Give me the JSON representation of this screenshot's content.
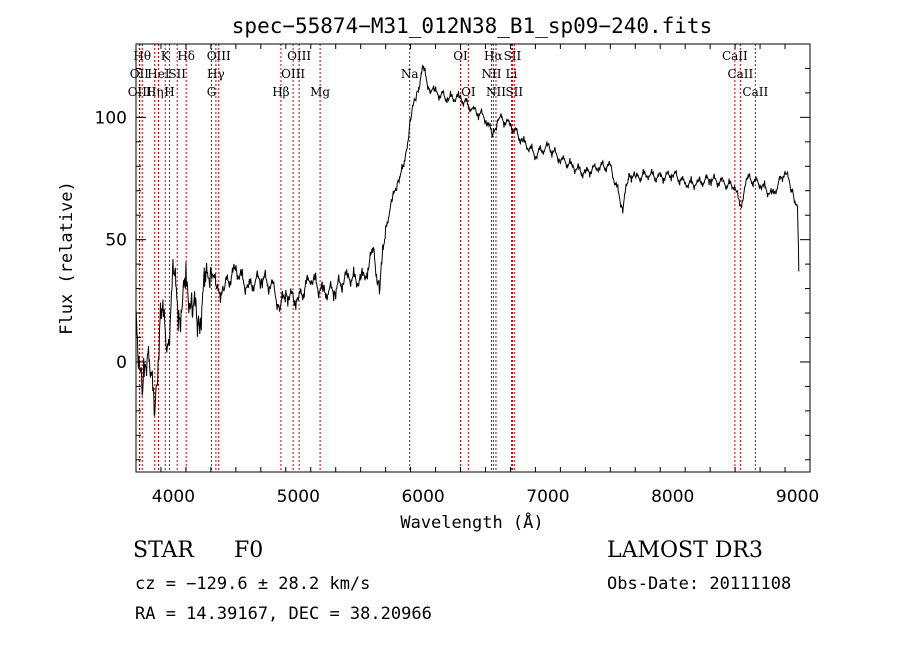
{
  "chart_data": {
    "type": "line",
    "title": "spec−55874−M31_012N38_B1_sp09−240.fits",
    "xlabel": "Wavelength (Å)",
    "ylabel": "Flux (relative)",
    "xlim": [
      3700,
      9100
    ],
    "ylim": [
      -45,
      130
    ],
    "xticks": [
      4000,
      5000,
      6000,
      7000,
      8000,
      9000
    ],
    "yticks": [
      0,
      50,
      100
    ],
    "series": [
      {
        "name": "spectrum",
        "x": [
          3700,
          3750,
          3800,
          3850,
          3900,
          3950,
          4000,
          4050,
          4100,
          4150,
          4200,
          4250,
          4300,
          4350,
          4400,
          4500,
          4600,
          4700,
          4800,
          4850,
          4900,
          5000,
          5100,
          5200,
          5300,
          5400,
          5500,
          5550,
          5600,
          5650,
          5700,
          5750,
          5800,
          5850,
          5900,
          5950,
          6000,
          6050,
          6100,
          6200,
          6300,
          6400,
          6500,
          6560,
          6600,
          6700,
          6800,
          6900,
          7000,
          7100,
          7200,
          7300,
          7400,
          7500,
          7600,
          7650,
          7700,
          7800,
          7900,
          8000,
          8100,
          8200,
          8300,
          8400,
          8500,
          8540,
          8600,
          8700,
          8800,
          8900,
          8960,
          9000,
          9010
        ],
        "y": [
          20,
          -15,
          10,
          -25,
          25,
          5,
          35,
          20,
          30,
          25,
          15,
          30,
          40,
          28,
          30,
          38,
          30,
          35,
          30,
          22,
          28,
          25,
          35,
          28,
          30,
          35,
          33,
          38,
          45,
          30,
          55,
          65,
          75,
          80,
          100,
          110,
          120,
          112,
          110,
          108,
          108,
          103,
          100,
          92,
          100,
          97,
          90,
          85,
          88,
          83,
          80,
          77,
          80,
          80,
          63,
          77,
          75,
          77,
          75,
          77,
          73,
          73,
          75,
          73,
          72,
          63,
          75,
          73,
          68,
          78,
          70,
          63,
          37
        ]
      }
    ],
    "line_labels": [
      {
        "wavelength": 3750,
        "label": "Hθ",
        "row": 0
      },
      {
        "wavelength": 3727,
        "label": "OII",
        "row": 1
      },
      {
        "wavelength": 3730,
        "label": "OIII",
        "row": 2
      },
      {
        "wavelength": 3934,
        "label": "K",
        "row": 0
      },
      {
        "wavelength": 3880,
        "label": "HeI",
        "row": 1
      },
      {
        "wavelength": 3850,
        "label": "Hη",
        "row": 2
      },
      {
        "wavelength": 4102,
        "label": "Hδ",
        "row": 0
      },
      {
        "wavelength": 4030,
        "label": "SII",
        "row": 1
      },
      {
        "wavelength": 3968,
        "label": "H",
        "row": 2
      },
      {
        "wavelength": 4363,
        "label": "OIII",
        "row": 0
      },
      {
        "wavelength": 4340,
        "label": "Hγ",
        "row": 1
      },
      {
        "wavelength": 4305,
        "label": "G",
        "row": 2
      },
      {
        "wavelength": 5007,
        "label": "OIII",
        "row": 0
      },
      {
        "wavelength": 4959,
        "label": "OIII",
        "row": 1
      },
      {
        "wavelength": 4861,
        "label": "Hβ",
        "row": 2
      },
      {
        "wavelength": 5175,
        "label": "Mg",
        "row": 2
      },
      {
        "wavelength": 5893,
        "label": "Na",
        "row": 1
      },
      {
        "wavelength": 6300,
        "label": "OI",
        "row": 0
      },
      {
        "wavelength": 6363,
        "label": "OI",
        "row": 2
      },
      {
        "wavelength": 6563,
        "label": "Hα",
        "row": 0
      },
      {
        "wavelength": 6716,
        "label": "SII",
        "row": 0
      },
      {
        "wavelength": 6548,
        "label": "NII",
        "row": 1
      },
      {
        "wavelength": 6708,
        "label": "Li",
        "row": 1
      },
      {
        "wavelength": 6584,
        "label": "NII",
        "row": 2
      },
      {
        "wavelength": 6731,
        "label": "SII",
        "row": 2
      },
      {
        "wavelength": 8498,
        "label": "CaII",
        "row": 0
      },
      {
        "wavelength": 8542,
        "label": "CaII",
        "row": 1
      },
      {
        "wavelength": 8662,
        "label": "CaII",
        "row": 2
      }
    ],
    "line_color": "#cc0000",
    "grid": false
  },
  "info": {
    "object_class": "STAR",
    "subclass": "F0",
    "survey": "LAMOST DR3",
    "cz": "cz = −129.6 ± 28.2 km/s",
    "obs_date": "Obs-Date: 20111108",
    "coords": "RA =  14.39167, DEC =  38.20966"
  }
}
